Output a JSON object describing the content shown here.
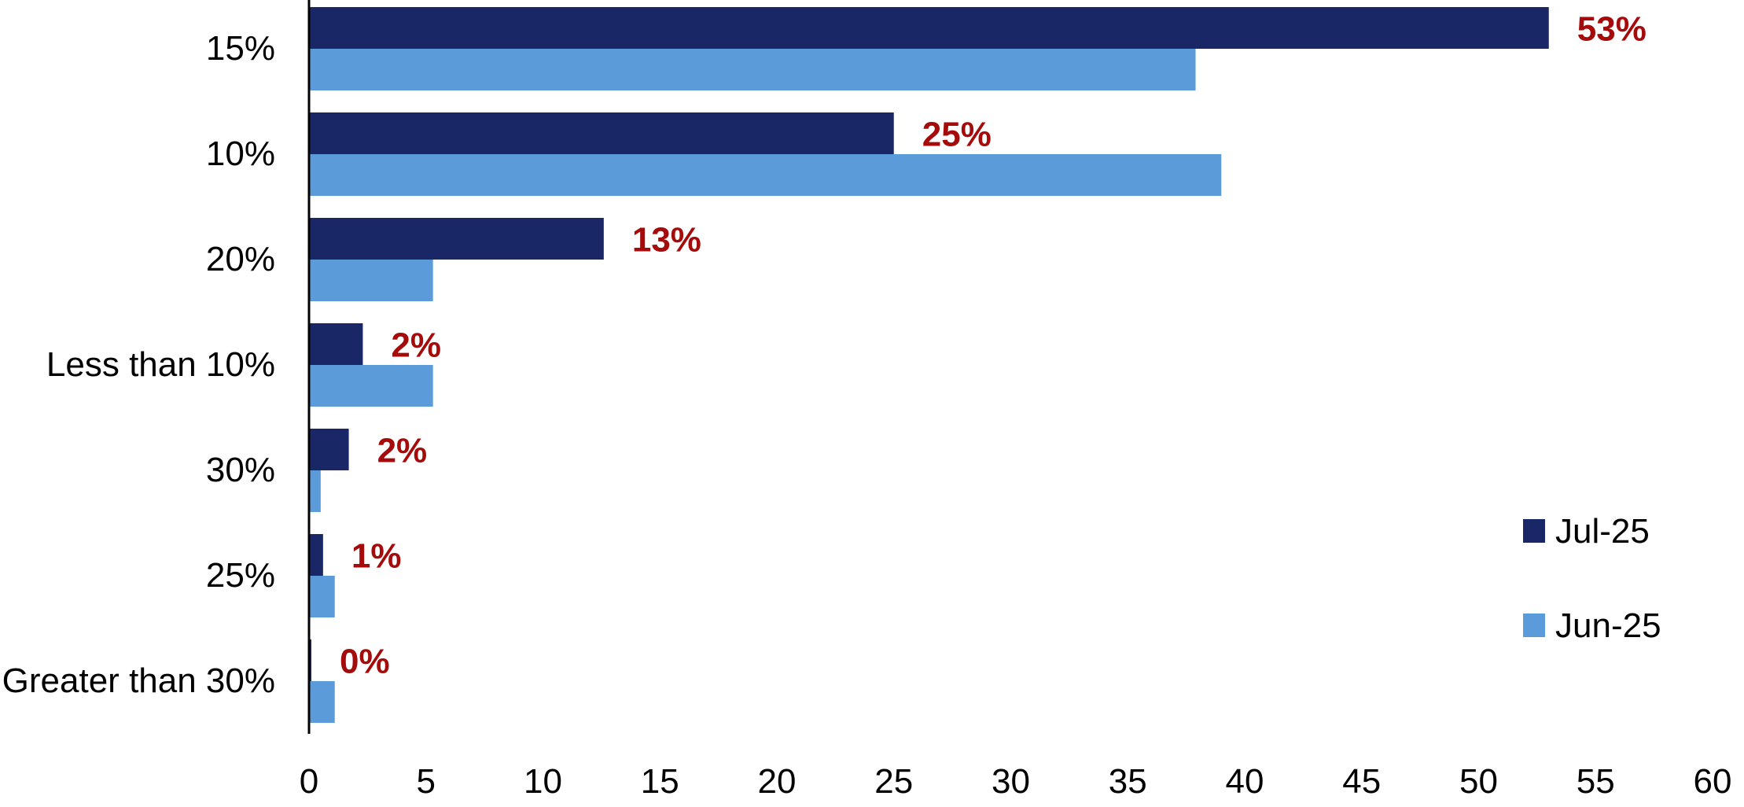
{
  "chart_data": {
    "type": "bar",
    "orientation": "horizontal",
    "categories": [
      "15%",
      "10%",
      "20%",
      "Less than 10%",
      "30%",
      "25%",
      "Greater than 30%"
    ],
    "series": [
      {
        "name": "Jul-25",
        "color": "#1a2766",
        "values": [
          53,
          25,
          12.6,
          2.3,
          1.7,
          0.6,
          0.1
        ]
      },
      {
        "name": "Jun-25",
        "color": "#5b9bd9",
        "values": [
          37.9,
          39,
          5.3,
          5.3,
          0.5,
          1.1,
          1.1
        ]
      }
    ],
    "data_labels": [
      "53%",
      "25%",
      "13%",
      "2%",
      "2%",
      "1%",
      "0%"
    ],
    "data_label_color": "#a50b0b",
    "xlim": [
      0,
      60
    ],
    "xticks": [
      0,
      5,
      10,
      15,
      20,
      25,
      30,
      35,
      40,
      45,
      50,
      55,
      60
    ],
    "title": "",
    "xlabel": "",
    "ylabel": "",
    "grid": false,
    "legend_position": "right"
  }
}
